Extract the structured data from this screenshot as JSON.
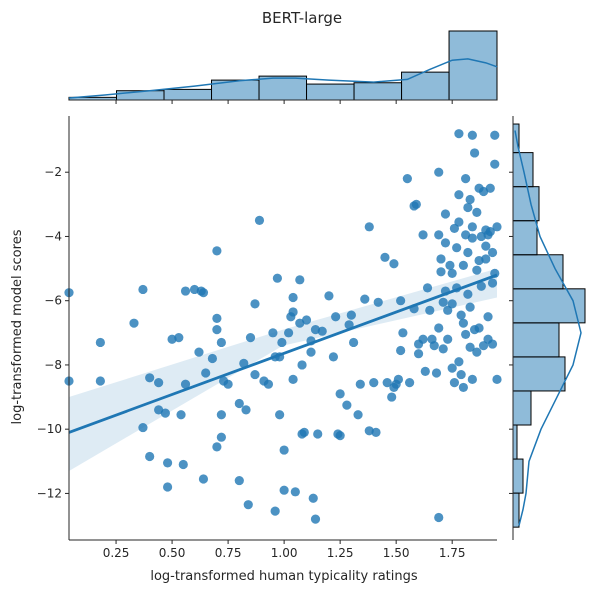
{
  "chart_data": {
    "type": "scatter",
    "title": "BERT-large",
    "xlabel": "log-transformed human typicality ratings",
    "ylabel": "log-transformed model scores",
    "xlim": [
      0.04,
      1.95
    ],
    "ylim": [
      -13.45,
      -0.25
    ],
    "xticks": [
      0.25,
      0.5,
      0.75,
      1.0,
      1.25,
      1.5,
      1.75
    ],
    "xtick_labels": [
      "0.25",
      "0.50",
      "0.75",
      "1.00",
      "1.25",
      "1.50",
      "1.75"
    ],
    "yticks": [
      -12,
      -10,
      -8,
      -6,
      -4,
      -2
    ],
    "ytick_labels": [
      "−12",
      "−10",
      "−8",
      "−6",
      "−4",
      "−2"
    ],
    "grid": false,
    "point_color": "#1f77b4",
    "regression": {
      "x": [
        0.04,
        1.95
      ],
      "y": [
        -10.1,
        -5.2
      ],
      "ci_upper": [
        -9.0,
        -5.0
      ],
      "ci_mid_upper": -6.9,
      "ci_lower": [
        -11.3,
        -5.9
      ],
      "ci_mid_lower": -7.4
    },
    "points": [
      [
        0.04,
        -5.75
      ],
      [
        0.04,
        -8.5
      ],
      [
        0.18,
        -7.3
      ],
      [
        0.18,
        -8.5
      ],
      [
        0.33,
        -6.7
      ],
      [
        0.37,
        -5.65
      ],
      [
        0.37,
        -9.95
      ],
      [
        0.4,
        -8.4
      ],
      [
        0.4,
        -10.85
      ],
      [
        0.44,
        -9.4
      ],
      [
        0.44,
        -8.55
      ],
      [
        0.47,
        -9.5
      ],
      [
        0.48,
        -11.8
      ],
      [
        0.48,
        -11.05
      ],
      [
        0.5,
        -7.2
      ],
      [
        0.53,
        -7.15
      ],
      [
        0.54,
        -9.55
      ],
      [
        0.55,
        -11.1
      ],
      [
        0.56,
        -8.6
      ],
      [
        0.56,
        -5.7
      ],
      [
        0.6,
        -5.65
      ],
      [
        0.62,
        -7.6
      ],
      [
        0.63,
        -5.7
      ],
      [
        0.64,
        -5.75
      ],
      [
        0.64,
        -11.55
      ],
      [
        0.65,
        -8.25
      ],
      [
        0.68,
        -7.8
      ],
      [
        0.7,
        -6.55
      ],
      [
        0.7,
        -6.9
      ],
      [
        0.7,
        -4.45
      ],
      [
        0.7,
        -10.55
      ],
      [
        0.72,
        -9.55
      ],
      [
        0.72,
        -10.25
      ],
      [
        0.72,
        -7.3
      ],
      [
        0.73,
        -8.5
      ],
      [
        0.75,
        -8.6
      ],
      [
        0.8,
        -11.6
      ],
      [
        0.8,
        -9.2
      ],
      [
        0.82,
        -7.95
      ],
      [
        0.83,
        -9.4
      ],
      [
        0.84,
        -12.35
      ],
      [
        0.85,
        -7.15
      ],
      [
        0.87,
        -6.1
      ],
      [
        0.87,
        -8.3
      ],
      [
        0.89,
        -3.5
      ],
      [
        0.91,
        -8.5
      ],
      [
        0.93,
        -8.6
      ],
      [
        0.95,
        -7.0
      ],
      [
        0.96,
        -12.55
      ],
      [
        0.96,
        -7.75
      ],
      [
        0.97,
        -5.3
      ],
      [
        0.98,
        -9.55
      ],
      [
        0.98,
        -7.75
      ],
      [
        0.99,
        -7.3
      ],
      [
        1.0,
        -10.65
      ],
      [
        1.0,
        -11.9
      ],
      [
        1.02,
        -7.0
      ],
      [
        1.03,
        -6.5
      ],
      [
        1.04,
        -8.45
      ],
      [
        1.04,
        -6.35
      ],
      [
        1.04,
        -5.9
      ],
      [
        1.05,
        -11.95
      ],
      [
        1.07,
        -5.35
      ],
      [
        1.07,
        -6.7
      ],
      [
        1.08,
        -8.0
      ],
      [
        1.08,
        -10.15
      ],
      [
        1.09,
        -10.1
      ],
      [
        1.1,
        -6.6
      ],
      [
        1.12,
        -7.6
      ],
      [
        1.12,
        -7.25
      ],
      [
        1.13,
        -12.15
      ],
      [
        1.14,
        -12.8
      ],
      [
        1.14,
        -6.9
      ],
      [
        1.15,
        -10.15
      ],
      [
        1.17,
        -6.95
      ],
      [
        1.2,
        -5.85
      ],
      [
        1.22,
        -7.75
      ],
      [
        1.23,
        -6.5
      ],
      [
        1.24,
        -10.15
      ],
      [
        1.25,
        -10.2
      ],
      [
        1.25,
        -8.9
      ],
      [
        1.28,
        -9.25
      ],
      [
        1.29,
        -6.75
      ],
      [
        1.3,
        -6.45
      ],
      [
        1.31,
        -7.3
      ],
      [
        1.33,
        -9.55
      ],
      [
        1.34,
        -8.6
      ],
      [
        1.36,
        -5.95
      ],
      [
        1.38,
        -3.7
      ],
      [
        1.38,
        -10.05
      ],
      [
        1.4,
        -8.55
      ],
      [
        1.41,
        -10.1
      ],
      [
        1.42,
        -6.05
      ],
      [
        1.45,
        -4.65
      ],
      [
        1.46,
        -8.55
      ],
      [
        1.48,
        -9.0
      ],
      [
        1.49,
        -4.85
      ],
      [
        1.49,
        -8.7
      ],
      [
        1.5,
        -8.6
      ],
      [
        1.51,
        -8.45
      ],
      [
        1.52,
        -6.0
      ],
      [
        1.52,
        -7.55
      ],
      [
        1.53,
        -7.0
      ],
      [
        1.55,
        -2.2
      ],
      [
        1.56,
        -8.55
      ],
      [
        1.58,
        -6.25
      ],
      [
        1.58,
        -3.05
      ],
      [
        1.59,
        -3.0
      ],
      [
        1.6,
        -7.35
      ],
      [
        1.6,
        -7.65
      ],
      [
        1.62,
        -3.95
      ],
      [
        1.62,
        -7.2
      ],
      [
        1.63,
        -8.2
      ],
      [
        1.64,
        -5.6
      ],
      [
        1.65,
        -6.3
      ],
      [
        1.66,
        -7.2
      ],
      [
        1.67,
        -7.4
      ],
      [
        1.68,
        -8.25
      ],
      [
        1.69,
        -12.75
      ],
      [
        1.69,
        -2.0
      ],
      [
        1.69,
        -6.85
      ],
      [
        1.69,
        -3.95
      ],
      [
        1.7,
        -4.7
      ],
      [
        1.7,
        -5.1
      ],
      [
        1.71,
        -6.05
      ],
      [
        1.71,
        -7.5
      ],
      [
        1.72,
        -3.3
      ],
      [
        1.72,
        -4.2
      ],
      [
        1.72,
        -5.7
      ],
      [
        1.73,
        -6.3
      ],
      [
        1.73,
        -7.2
      ],
      [
        1.74,
        -4.9
      ],
      [
        1.75,
        -6.1
      ],
      [
        1.75,
        -8.1
      ],
      [
        1.75,
        -5.15
      ],
      [
        1.76,
        -8.55
      ],
      [
        1.76,
        -3.75
      ],
      [
        1.77,
        -5.6
      ],
      [
        1.77,
        -4.35
      ],
      [
        1.78,
        -0.8
      ],
      [
        1.78,
        -7.9
      ],
      [
        1.78,
        -2.7
      ],
      [
        1.78,
        -3.55
      ],
      [
        1.79,
        -6.45
      ],
      [
        1.79,
        -8.3
      ],
      [
        1.8,
        -6.7
      ],
      [
        1.8,
        -4.9
      ],
      [
        1.8,
        -8.7
      ],
      [
        1.81,
        -2.2
      ],
      [
        1.81,
        -3.95
      ],
      [
        1.81,
        -7.05
      ],
      [
        1.82,
        -3.1
      ],
      [
        1.82,
        -4.5
      ],
      [
        1.82,
        -5.8
      ],
      [
        1.83,
        -2.85
      ],
      [
        1.83,
        -6.2
      ],
      [
        1.83,
        -7.45
      ],
      [
        1.84,
        -3.7
      ],
      [
        1.84,
        -4.05
      ],
      [
        1.84,
        -8.45
      ],
      [
        1.84,
        -0.85
      ],
      [
        1.85,
        -1.4
      ],
      [
        1.85,
        -6.9
      ],
      [
        1.86,
        -5.05
      ],
      [
        1.86,
        -3.25
      ],
      [
        1.86,
        -7.6
      ],
      [
        1.87,
        -2.5
      ],
      [
        1.87,
        -4.75
      ],
      [
        1.87,
        -6.85
      ],
      [
        1.88,
        -5.55
      ],
      [
        1.88,
        -4.0
      ],
      [
        1.89,
        -2.6
      ],
      [
        1.89,
        -7.4
      ],
      [
        1.9,
        -4.3
      ],
      [
        1.9,
        -3.8
      ],
      [
        1.9,
        -4.7
      ],
      [
        1.91,
        -6.5
      ],
      [
        1.91,
        -3.95
      ],
      [
        1.91,
        -7.2
      ],
      [
        1.92,
        -3.85
      ],
      [
        1.92,
        -2.5
      ],
      [
        1.93,
        -5.45
      ],
      [
        1.93,
        -4.5
      ],
      [
        1.93,
        -7.35
      ],
      [
        1.94,
        -0.85
      ],
      [
        1.94,
        -1.75
      ],
      [
        1.94,
        -5.15
      ],
      [
        1.95,
        -3.7
      ],
      [
        1.95,
        -8.45
      ]
    ],
    "x_marginal": {
      "bin_edges": [
        0.04,
        0.252,
        0.464,
        0.676,
        0.888,
        1.1,
        1.312,
        1.524,
        1.736,
        1.95
      ],
      "counts": [
        2,
        7,
        8,
        15,
        18,
        12,
        13,
        21,
        52
      ],
      "kde": [
        [
          0.04,
          1.5
        ],
        [
          0.2,
          3.8
        ],
        [
          0.4,
          7.0
        ],
        [
          0.6,
          10.5
        ],
        [
          0.8,
          14.5
        ],
        [
          0.95,
          16.5
        ],
        [
          1.05,
          16.5
        ],
        [
          1.2,
          15.0
        ],
        [
          1.4,
          13.5
        ],
        [
          1.55,
          15.5
        ],
        [
          1.65,
          23.0
        ],
        [
          1.75,
          30.0
        ],
        [
          1.82,
          31.0
        ],
        [
          1.9,
          28.0
        ],
        [
          1.95,
          25.0
        ]
      ]
    },
    "y_marginal": {
      "bin_edges": [
        -13.05,
        -11.99,
        -10.93,
        -9.87,
        -8.81,
        -7.75,
        -6.69,
        -5.63,
        -4.57,
        -3.51,
        -2.45,
        -1.39,
        -0.5
      ],
      "counts": [
        3,
        5,
        2,
        9,
        26,
        23,
        36,
        25,
        12,
        13,
        10,
        3
      ],
      "kde": [
        [
          -13.0,
          3.0
        ],
        [
          -12.5,
          5.0
        ],
        [
          -12.0,
          6.5
        ],
        [
          -11.0,
          8.0
        ],
        [
          -10.0,
          14.0
        ],
        [
          -9.0,
          22.0
        ],
        [
          -8.0,
          30.0
        ],
        [
          -7.0,
          34.0
        ],
        [
          -6.0,
          30.0
        ],
        [
          -5.0,
          21.0
        ],
        [
          -4.0,
          13.5
        ],
        [
          -3.0,
          9.0
        ],
        [
          -2.0,
          5.5
        ],
        [
          -1.2,
          2.5
        ],
        [
          -0.7,
          1.0
        ]
      ]
    }
  }
}
